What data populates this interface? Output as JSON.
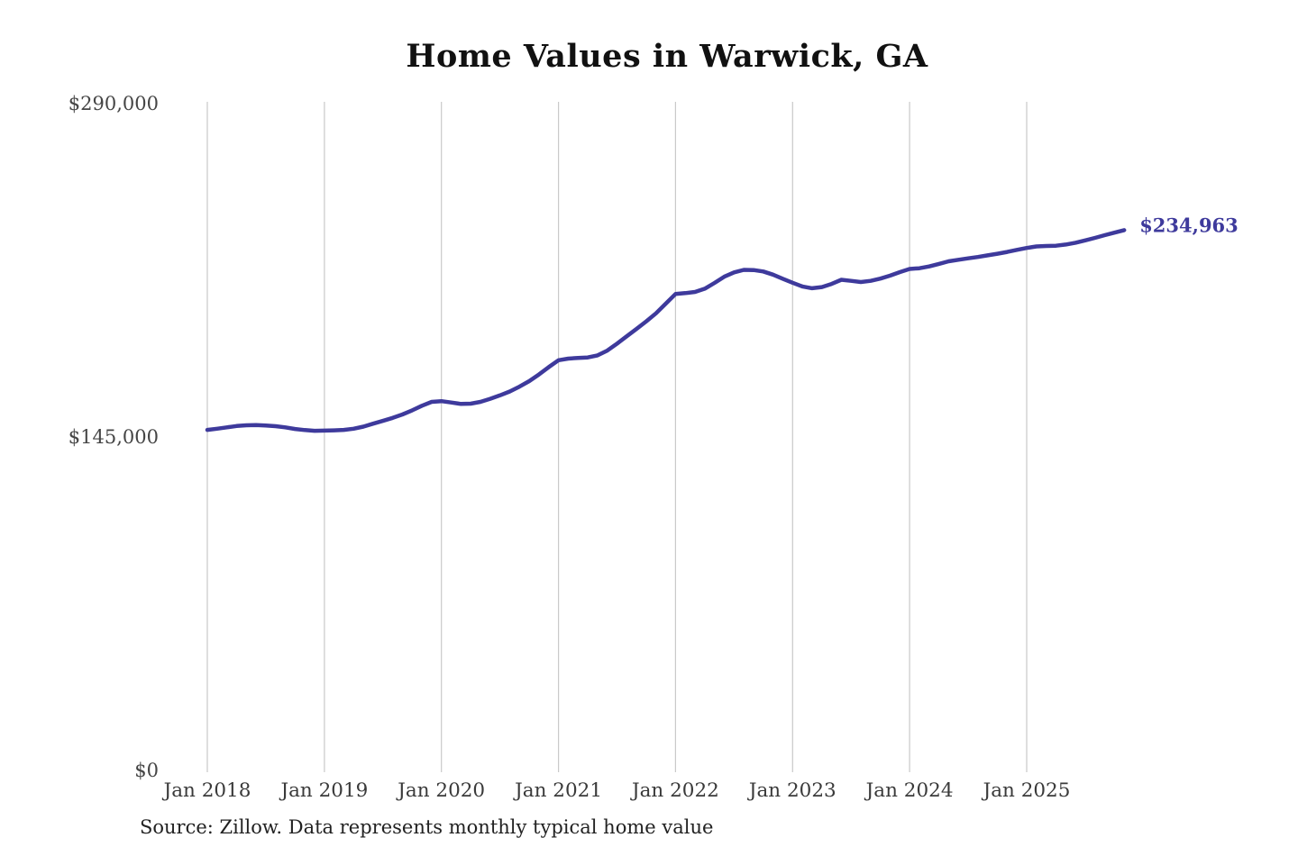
{
  "page": {
    "title": "Home Values in Warwick, GA",
    "source_note": "Source: Zillow. Data represents monthly typical home value"
  },
  "chart_data": {
    "type": "line",
    "title": "Home Values in Warwick, GA",
    "subtitle": "",
    "xlabel": "",
    "ylabel": "",
    "ylim": [
      0,
      290000
    ],
    "grid": "vertical",
    "legend": "none",
    "end_label": "$234,963",
    "end_value": 234963,
    "source": "Source: Zillow. Data represents monthly typical home value",
    "y_ticks": [
      {
        "value": 290000,
        "label": "$290,000"
      },
      {
        "value": 145000,
        "label": "$145,000"
      },
      {
        "value": 0,
        "label": "$0"
      }
    ],
    "x_ticks": [
      {
        "month_index": 0,
        "label": "Jan 2018"
      },
      {
        "month_index": 12,
        "label": "Jan 2019"
      },
      {
        "month_index": 24,
        "label": "Jan 2020"
      },
      {
        "month_index": 36,
        "label": "Jan 2021"
      },
      {
        "month_index": 48,
        "label": "Jan 2022"
      },
      {
        "month_index": 60,
        "label": "Jan 2023"
      },
      {
        "month_index": 72,
        "label": "Jan 2024"
      },
      {
        "month_index": 84,
        "label": "Jan 2025"
      }
    ],
    "series": [
      {
        "name": "Typical home value",
        "start_month": "2018-01",
        "interval": "monthly",
        "values": [
          148100,
          148600,
          149200,
          149800,
          150100,
          150200,
          150000,
          149700,
          149200,
          148500,
          148000,
          147700,
          147800,
          147900,
          148100,
          148600,
          149500,
          150800,
          152000,
          153300,
          154800,
          156600,
          158600,
          160300,
          160600,
          160000,
          159400,
          159500,
          160300,
          161600,
          163100,
          164800,
          166900,
          169300,
          172200,
          175400,
          178400,
          179100,
          179400,
          179600,
          180500,
          182600,
          185600,
          188800,
          192000,
          195300,
          198800,
          203000,
          207200,
          207600,
          208100,
          209500,
          212000,
          214700,
          216600,
          217700,
          217600,
          217000,
          215600,
          213800,
          212100,
          210500,
          209700,
          210200,
          211600,
          213400,
          212900,
          212400,
          212900,
          213900,
          215200,
          216700,
          218100,
          218400,
          219200,
          220300,
          221400,
          222100,
          222700,
          223300,
          224000,
          224700,
          225500,
          226400,
          227200,
          227900,
          228100,
          228200,
          228700,
          229500,
          230500,
          231600,
          232800,
          233900,
          234963
        ]
      }
    ],
    "colors": {
      "line": "#3e3a9c",
      "end_label": "#3e3a9c",
      "gridline": "#c9c9c9",
      "axis_label": "#454545",
      "title": "#111111",
      "source": "#222222",
      "background": "#ffffff"
    }
  }
}
